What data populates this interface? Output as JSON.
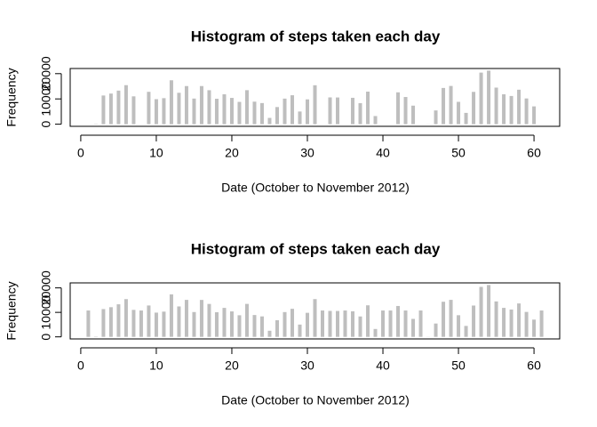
{
  "chart_data": [
    {
      "type": "bar",
      "title": "Histogram of steps taken each day",
      "xlabel": "Date (October to November 2012)",
      "ylabel": "Frequency",
      "color": "#bebebe",
      "x": [
        1,
        2,
        3,
        4,
        5,
        6,
        7,
        8,
        9,
        10,
        11,
        12,
        13,
        14,
        15,
        16,
        17,
        18,
        19,
        20,
        21,
        22,
        23,
        24,
        25,
        26,
        27,
        28,
        29,
        30,
        31,
        32,
        33,
        34,
        35,
        36,
        37,
        38,
        39,
        40,
        41,
        42,
        43,
        44,
        45,
        46,
        47,
        48,
        49,
        50,
        51,
        52,
        53,
        54,
        55,
        56,
        57,
        58,
        59,
        60,
        61
      ],
      "values": [
        null,
        126,
        11352,
        12116,
        13294,
        15420,
        11015,
        null,
        12811,
        9900,
        10304,
        17382,
        12426,
        15098,
        10139,
        15084,
        13452,
        10056,
        11829,
        10395,
        8821,
        13460,
        8918,
        8355,
        2492,
        6778,
        10119,
        11458,
        5018,
        9819,
        15414,
        null,
        10600,
        10571,
        null,
        10439,
        8334,
        12883,
        3219,
        null,
        null,
        12608,
        10765,
        7336,
        null,
        41,
        5441,
        14339,
        15110,
        8841,
        4472,
        12787,
        20427,
        21194,
        14478,
        11834,
        11162,
        13646,
        10183,
        7047,
        null
      ],
      "xlim": [
        -1.4,
        63.4
      ],
      "ylim": [
        -848,
        22042
      ],
      "xticks": [
        0,
        10,
        20,
        30,
        40,
        50,
        60
      ],
      "yticks": [
        0,
        10000,
        20000
      ]
    },
    {
      "type": "bar",
      "title": "Histogram of steps taken each day",
      "xlabel": "Date (October to November 2012)",
      "ylabel": "Frequency",
      "color": "#bebebe",
      "x": [
        1,
        2,
        3,
        4,
        5,
        6,
        7,
        8,
        9,
        10,
        11,
        12,
        13,
        14,
        15,
        16,
        17,
        18,
        19,
        20,
        21,
        22,
        23,
        24,
        25,
        26,
        27,
        28,
        29,
        30,
        31,
        32,
        33,
        34,
        35,
        36,
        37,
        38,
        39,
        40,
        41,
        42,
        43,
        44,
        45,
        46,
        47,
        48,
        49,
        50,
        51,
        52,
        53,
        54,
        55,
        56,
        57,
        58,
        59,
        60,
        61
      ],
      "values": [
        10766.19,
        126,
        11352,
        12116,
        13294,
        15420,
        11015,
        10766.19,
        12811,
        9900,
        10304,
        17382,
        12426,
        15098,
        10139,
        15084,
        13452,
        10056,
        11829,
        10395,
        8821,
        13460,
        8918,
        8355,
        2492,
        6778,
        10119,
        11458,
        5018,
        9819,
        15414,
        10766.19,
        10600,
        10571,
        10766.19,
        10439,
        8334,
        12883,
        3219,
        10766.19,
        10766.19,
        12608,
        10765,
        7336,
        10766.19,
        41,
        5441,
        14339,
        15110,
        8841,
        4472,
        12787,
        20427,
        21194,
        14478,
        11834,
        11162,
        13646,
        10183,
        7047,
        10766.19
      ],
      "xlim": [
        -1.4,
        63.4
      ],
      "ylim": [
        -848,
        22042
      ],
      "xticks": [
        0,
        10,
        20,
        30,
        40,
        50,
        60
      ],
      "yticks": [
        0,
        10000,
        20000
      ]
    }
  ]
}
